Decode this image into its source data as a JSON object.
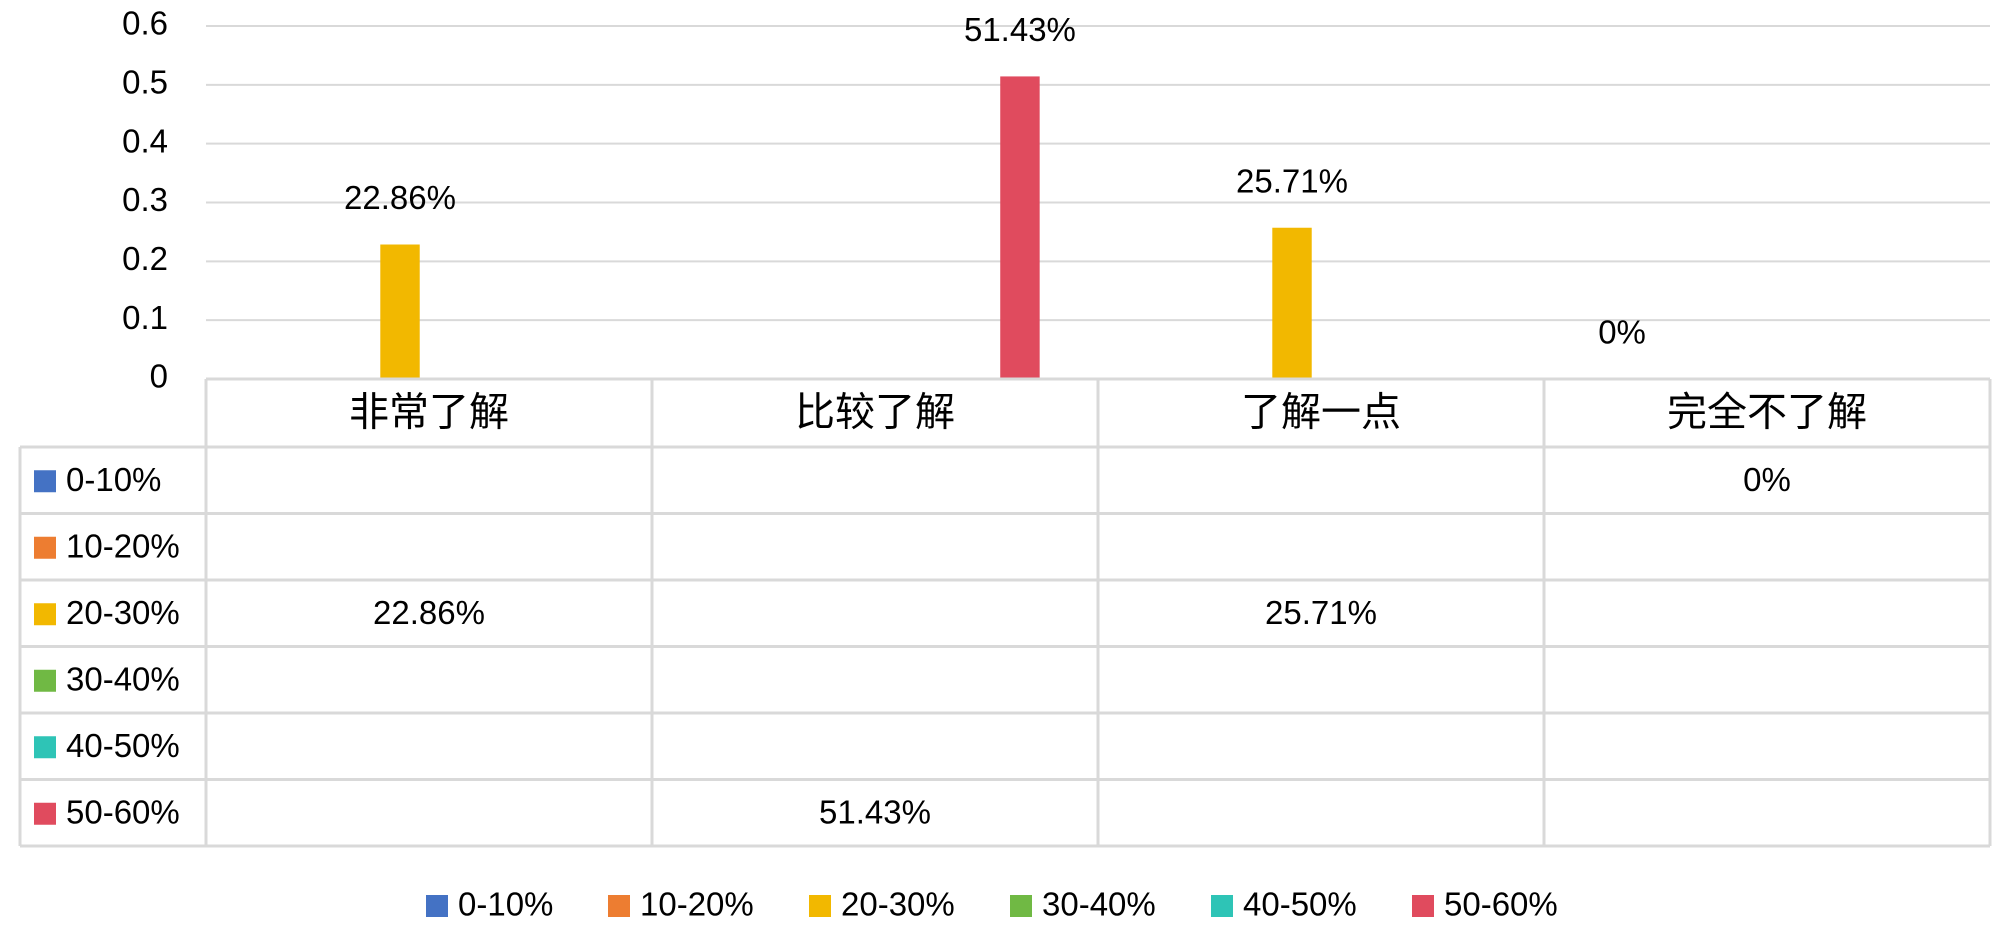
{
  "chart_data": {
    "type": "bar",
    "categories": [
      "非常了解",
      "比较了解",
      "了解一点",
      "完全不了解"
    ],
    "series": [
      {
        "name": "0-10%",
        "color": "#4472C4",
        "values": [
          null,
          null,
          null,
          0
        ]
      },
      {
        "name": "10-20%",
        "color": "#ED7D31",
        "values": [
          null,
          null,
          null,
          null
        ]
      },
      {
        "name": "20-30%",
        "color": "#F2B800",
        "values": [
          0.2286,
          null,
          0.2571,
          null
        ]
      },
      {
        "name": "30-40%",
        "color": "#70B944",
        "values": [
          null,
          null,
          null,
          null
        ]
      },
      {
        "name": "40-50%",
        "color": "#2EC4B6",
        "values": [
          null,
          null,
          null,
          null
        ]
      },
      {
        "name": "50-60%",
        "color": "#E04B5E",
        "values": [
          null,
          0.5143,
          null,
          null
        ]
      }
    ],
    "labels": [
      [
        "",
        "",
        "",
        "0%"
      ],
      [
        "",
        "",
        "",
        ""
      ],
      [
        "22.86%",
        "",
        "25.71%",
        ""
      ],
      [
        "",
        "",
        "",
        ""
      ],
      [
        "",
        "",
        "",
        ""
      ],
      [
        "",
        "51.43%",
        "",
        ""
      ]
    ],
    "y_ticks": [
      "0",
      "0.1",
      "0.2",
      "0.3",
      "0.4",
      "0.5",
      "0.6"
    ],
    "ylim": [
      0,
      0.6
    ],
    "title": "",
    "xlabel": "",
    "ylabel": "",
    "grid": true,
    "legend": "bottom",
    "data_table": true
  }
}
